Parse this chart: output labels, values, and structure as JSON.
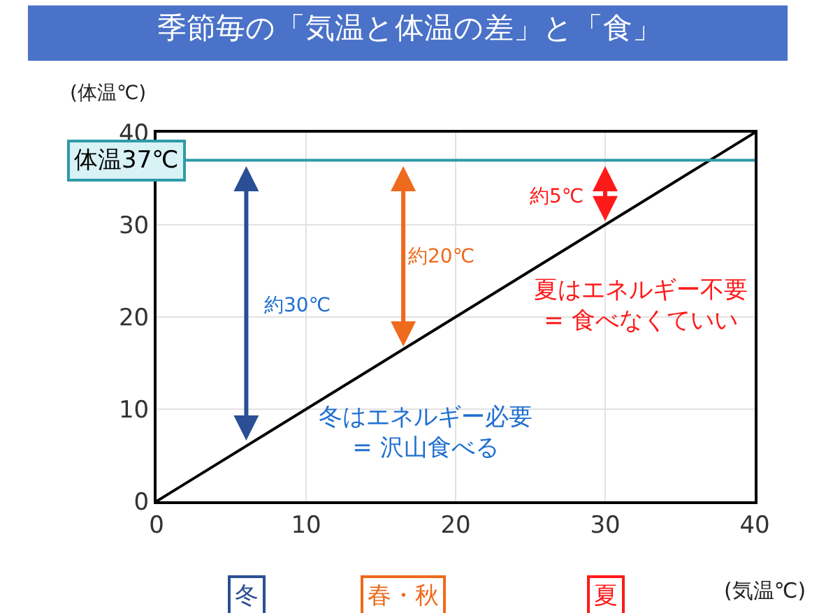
{
  "chart_data": {
    "type": "line",
    "title": "季節毎の「気温と体温の差」と「食」",
    "xlabel": "(気温℃)",
    "ylabel": "(体温℃)",
    "xlim": [
      0,
      40
    ],
    "xticks": [
      0,
      10,
      20,
      30,
      40
    ],
    "ylim": [
      0,
      40
    ],
    "yticks": [
      0,
      10,
      20,
      30,
      40
    ],
    "grid": true,
    "legend": false,
    "series": [
      {
        "color": "#000000",
        "x": [
          0,
          40
        ],
        "values": [
          0,
          40
        ]
      }
    ],
    "ref_lines": [
      {
        "axis": "y",
        "value": 37,
        "label": "体温37℃",
        "color": "#2e9aa8"
      }
    ],
    "annotations": [
      "約30℃",
      "約20℃",
      "約5℃",
      "冬",
      "春・秋",
      "夏",
      "夏はエネルギー不要\n= 食べなくていい",
      "冬はエネルギー必要\n= 沢山食べる"
    ]
  }
}
